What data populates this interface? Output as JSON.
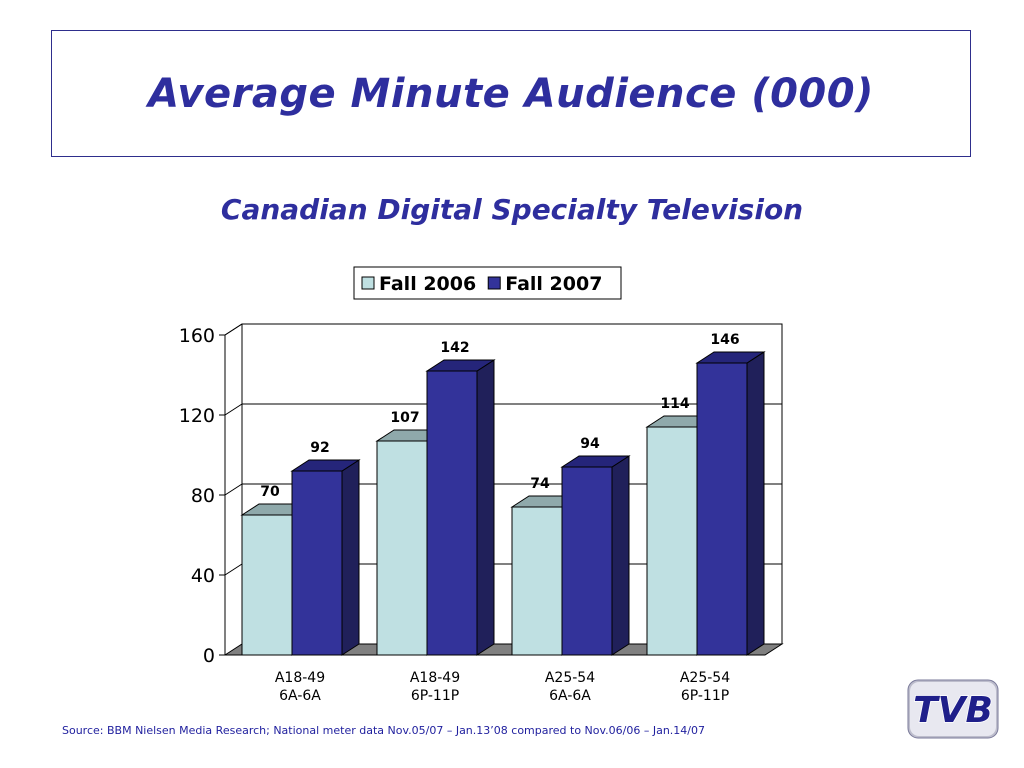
{
  "page": {
    "title": "Average Minute Audience (000)",
    "source": "Source: BBM Nielsen Media Research; National meter data Nov.05/07 – Jan.13’08 compared to Nov.06/06 – Jan.14/07",
    "logo_text": "TVB"
  },
  "colors": {
    "title": "#2e2e9e",
    "fall2006_front": "#bfe0e2",
    "fall2006_top": "#8fa9ab",
    "fall2006_side": "#7f9b9d",
    "fall2007_front": "#33339a",
    "fall2007_top": "#25257a",
    "fall2007_side": "#20205a",
    "floor": "#808080"
  },
  "chart_data": {
    "type": "bar",
    "title": "Canadian Digital Specialty Television",
    "categories": [
      [
        "A18-49",
        "6A-6A"
      ],
      [
        "A18-49",
        "6P-11P"
      ],
      [
        "A25-54",
        "6A-6A"
      ],
      [
        "A25-54",
        "6P-11P"
      ]
    ],
    "series": [
      {
        "name": "Fall 2006",
        "values": [
          70,
          107,
          74,
          114
        ]
      },
      {
        "name": "Fall 2007",
        "values": [
          92,
          142,
          94,
          146
        ]
      }
    ],
    "ylim": [
      0,
      160
    ],
    "yticks": [
      0,
      40,
      80,
      120,
      160
    ],
    "grid": true,
    "legend": "top-center",
    "style": "3d-clustered-column"
  }
}
